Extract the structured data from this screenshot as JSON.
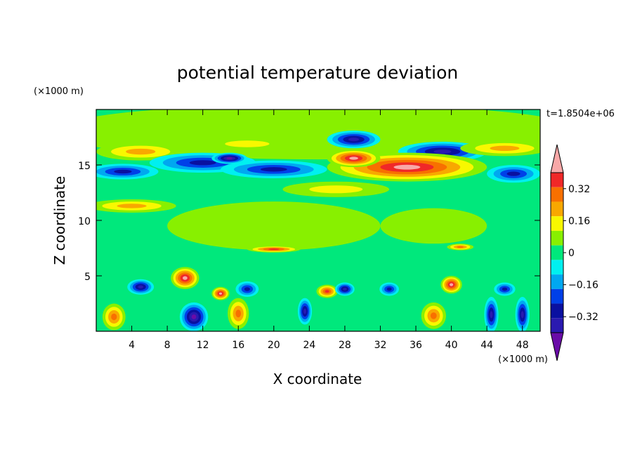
{
  "chart_data": {
    "type": "heatmap",
    "title": "potential temperature deviation",
    "xlabel": "X coordinate",
    "ylabel": "Z coordinate",
    "x_unit": "(×1000 m)",
    "y_unit": "(×1000 m)",
    "time_label": "t=1.8504e+06",
    "xlim": [
      0,
      50
    ],
    "ylim": [
      0,
      20
    ],
    "x_ticks": [
      4,
      8,
      12,
      16,
      20,
      24,
      28,
      32,
      36,
      40,
      44,
      48
    ],
    "x_tick_labels": [
      "4",
      "8",
      "12",
      "16",
      "20",
      "24",
      "28",
      "32",
      "36",
      "40",
      "44",
      "48"
    ],
    "y_ticks": [
      5,
      10,
      15
    ],
    "y_tick_labels": [
      "5",
      "10",
      "15"
    ],
    "colorbar": {
      "levels": [
        -0.48,
        -0.4,
        -0.32,
        -0.24,
        -0.16,
        -0.08,
        0,
        0.08,
        0.16,
        0.24,
        0.32,
        0.4,
        0.48
      ],
      "colors": [
        "#6a0ca8",
        "#2a1ab0",
        "#0a10a0",
        "#0040e8",
        "#00a8f0",
        "#00f0f0",
        "#00e87c",
        "#88f000",
        "#f8f800",
        "#f8a800",
        "#f87000",
        "#f02828",
        "#f8a8a8"
      ],
      "tick_labels": [
        "0.32",
        "0.16",
        "0",
        "−0.16",
        "−0.32"
      ],
      "tick_values": [
        0.32,
        0.16,
        0,
        -0.16,
        -0.32
      ]
    },
    "background_value": 0.02,
    "features": [
      {
        "x": 25,
        "z": 18.0,
        "rx": 30,
        "rz": 2.5,
        "value": 0.09
      },
      {
        "x": 20,
        "z": 9.5,
        "rx": 12,
        "rz": 2.2,
        "value": 0.08
      },
      {
        "x": 38,
        "z": 9.5,
        "rx": 6,
        "rz": 1.6,
        "value": 0.08
      },
      {
        "x": 5,
        "z": 16.2,
        "rx": 5,
        "rz": 0.8,
        "value": 0.24
      },
      {
        "x": 3,
        "z": 14.4,
        "rx": 4,
        "rz": 0.7,
        "value": -0.34
      },
      {
        "x": 12,
        "z": 15.2,
        "rx": 6,
        "rz": 0.9,
        "value": -0.34
      },
      {
        "x": 15,
        "z": 15.6,
        "rx": 2,
        "rz": 0.5,
        "value": -0.44
      },
      {
        "x": 20,
        "z": 14.6,
        "rx": 6,
        "rz": 0.8,
        "value": -0.3
      },
      {
        "x": 17,
        "z": 16.9,
        "rx": 5,
        "rz": 0.6,
        "value": 0.18
      },
      {
        "x": 29,
        "z": 17.3,
        "rx": 3,
        "rz": 0.8,
        "value": -0.38
      },
      {
        "x": 39,
        "z": 16.2,
        "rx": 5,
        "rz": 0.9,
        "value": -0.36
      },
      {
        "x": 46,
        "z": 16.5,
        "rx": 5,
        "rz": 0.7,
        "value": 0.22
      },
      {
        "x": 35,
        "z": 14.8,
        "rx": 9,
        "rz": 1.3,
        "value": 0.44
      },
      {
        "x": 29,
        "z": 15.6,
        "rx": 3,
        "rz": 0.8,
        "value": 0.48
      },
      {
        "x": 4,
        "z": 11.3,
        "rx": 5,
        "rz": 0.6,
        "value": 0.22
      },
      {
        "x": 27,
        "z": 12.8,
        "rx": 6,
        "rz": 0.7,
        "value": 0.12
      },
      {
        "x": 47,
        "z": 14.2,
        "rx": 3,
        "rz": 0.8,
        "value": -0.3
      },
      {
        "x": 20,
        "z": 7.4,
        "rx": 3,
        "rz": 0.3,
        "value": 0.4
      },
      {
        "x": 41,
        "z": 7.6,
        "rx": 1.5,
        "rz": 0.3,
        "value": 0.3
      },
      {
        "x": 10,
        "z": 4.8,
        "rx": 1.6,
        "rz": 1.0,
        "value": 0.44
      },
      {
        "x": 14,
        "z": 3.4,
        "rx": 1.0,
        "rz": 0.6,
        "value": 0.46
      },
      {
        "x": 40,
        "z": 4.2,
        "rx": 1.2,
        "rz": 0.8,
        "value": 0.46
      },
      {
        "x": 26,
        "z": 3.6,
        "rx": 1.2,
        "rz": 0.6,
        "value": 0.4
      },
      {
        "x": 5,
        "z": 4.0,
        "rx": 1.5,
        "rz": 0.7,
        "value": -0.38
      },
      {
        "x": 17,
        "z": 3.8,
        "rx": 1.3,
        "rz": 0.7,
        "value": -0.34
      },
      {
        "x": 28,
        "z": 3.8,
        "rx": 1.1,
        "rz": 0.6,
        "value": -0.36
      },
      {
        "x": 33,
        "z": 3.8,
        "rx": 1.1,
        "rz": 0.6,
        "value": -0.34
      },
      {
        "x": 46,
        "z": 3.8,
        "rx": 1.2,
        "rz": 0.6,
        "value": -0.32
      },
      {
        "x": 11,
        "z": 1.3,
        "rx": 1.6,
        "rz": 1.3,
        "value": -0.44
      },
      {
        "x": 44.5,
        "z": 1.5,
        "rx": 0.8,
        "rz": 1.6,
        "value": -0.42
      },
      {
        "x": 48,
        "z": 1.5,
        "rx": 0.8,
        "rz": 1.6,
        "value": -0.42
      },
      {
        "x": 23.5,
        "z": 1.8,
        "rx": 0.8,
        "rz": 1.2,
        "value": -0.4
      },
      {
        "x": 2,
        "z": 1.3,
        "rx": 1.3,
        "rz": 1.2,
        "value": 0.34
      },
      {
        "x": 16,
        "z": 1.6,
        "rx": 1.2,
        "rz": 1.4,
        "value": 0.3
      },
      {
        "x": 38,
        "z": 1.4,
        "rx": 1.4,
        "rz": 1.2,
        "value": 0.28
      }
    ]
  }
}
